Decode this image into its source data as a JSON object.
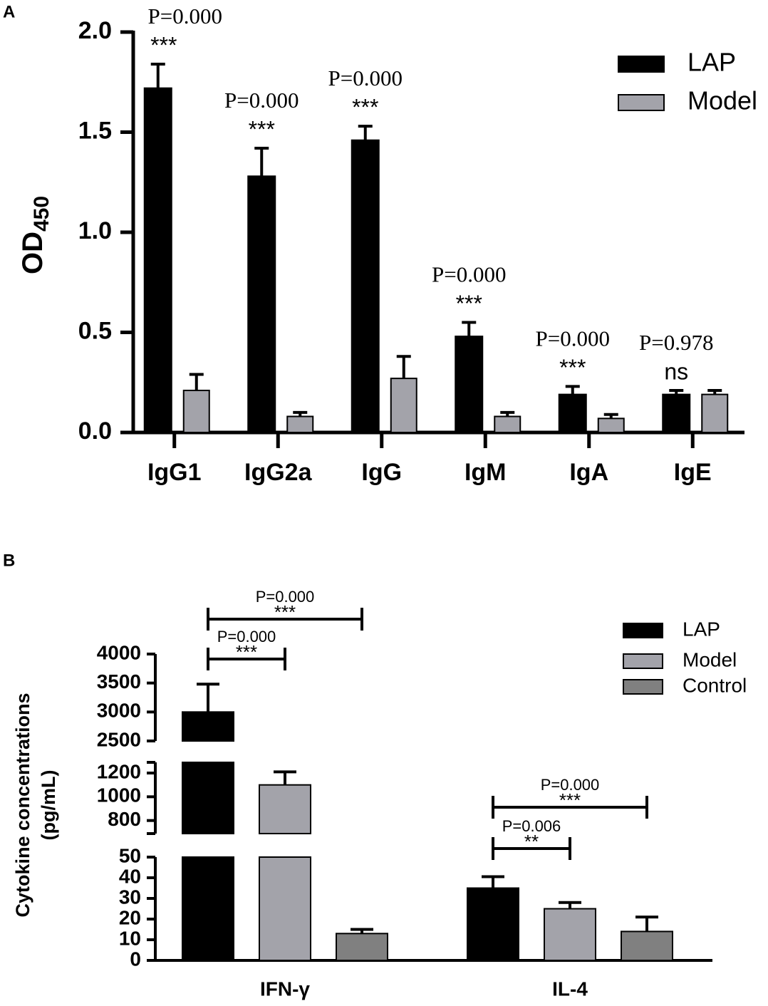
{
  "chart_data": [
    {
      "panel": "A",
      "type": "bar",
      "y_label": "OD",
      "y_label_sub": "450",
      "categories": [
        "IgG1",
        "IgG2a",
        "IgG",
        "IgM",
        "IgA",
        "IgE"
      ],
      "series": [
        {
          "name": "LAP",
          "color": "#000000",
          "values": [
            1.72,
            1.28,
            1.46,
            0.48,
            0.19,
            0.19
          ],
          "errors": [
            0.12,
            0.14,
            0.07,
            0.07,
            0.04,
            0.02
          ]
        },
        {
          "name": "Model",
          "color": "#a3a3aa",
          "values": [
            0.21,
            0.08,
            0.27,
            0.08,
            0.07,
            0.19
          ],
          "errors": [
            0.08,
            0.02,
            0.11,
            0.02,
            0.02,
            0.02
          ]
        }
      ],
      "ylim": [
        0,
        2
      ],
      "yticks": [
        {
          "value": 0,
          "label": "0.0"
        },
        {
          "value": 0.5,
          "label": "0.5"
        },
        {
          "value": 1,
          "label": "1.0"
        },
        {
          "value": 1.5,
          "label": "1.5"
        },
        {
          "value": 2,
          "label": "2.0"
        }
      ],
      "annotations": [
        {
          "p": "P=0.000",
          "sig": "***"
        },
        {
          "p": "P=0.000",
          "sig": "***"
        },
        {
          "p": "P=0.000",
          "sig": "***"
        },
        {
          "p": "P=0.000",
          "sig": "***"
        },
        {
          "p": "P=0.000",
          "sig": "***"
        },
        {
          "p": "P=0.978",
          "sig": "ns"
        }
      ],
      "legend": "upper right"
    },
    {
      "panel": "B",
      "type": "bar",
      "y_label": [
        "Cytokine concentrations",
        "(pg/mL)"
      ],
      "categories": [
        "IFN-γ",
        "IL-4"
      ],
      "series": [
        {
          "name": "LAP",
          "color": "#000000",
          "values": [
            3000,
            35
          ],
          "errors": [
            480,
            5.5
          ]
        },
        {
          "name": "Model",
          "color": "#a3a3aa",
          "values": [
            1100,
            25
          ],
          "errors": [
            110,
            3
          ]
        },
        {
          "name": "Control",
          "color": "#808080",
          "values": [
            13,
            14
          ],
          "errors": [
            2,
            7
          ]
        }
      ],
      "y_segments": [
        {
          "ylim": [
            0,
            50
          ],
          "yticks": [
            0,
            10,
            20,
            30,
            40,
            50
          ]
        },
        {
          "ylim": [
            690,
            1290
          ],
          "yticks": [
            800,
            1000,
            1200
          ]
        },
        {
          "ylim": [
            2500,
            4000
          ],
          "yticks": [
            2500,
            3000,
            3500,
            4000
          ]
        }
      ],
      "comparisons": [
        {
          "category": 0,
          "from": 0,
          "to": 2,
          "p": "P=0.000",
          "sig": "***"
        },
        {
          "category": 0,
          "from": 0,
          "to": 1,
          "p": "P=0.000",
          "sig": "***"
        },
        {
          "category": 1,
          "from": 0,
          "to": 2,
          "p": "P=0.000",
          "sig": "***"
        },
        {
          "category": 1,
          "from": 0,
          "to": 1,
          "p": "P=0.006",
          "sig": "**"
        }
      ],
      "legend": "upper right"
    }
  ]
}
